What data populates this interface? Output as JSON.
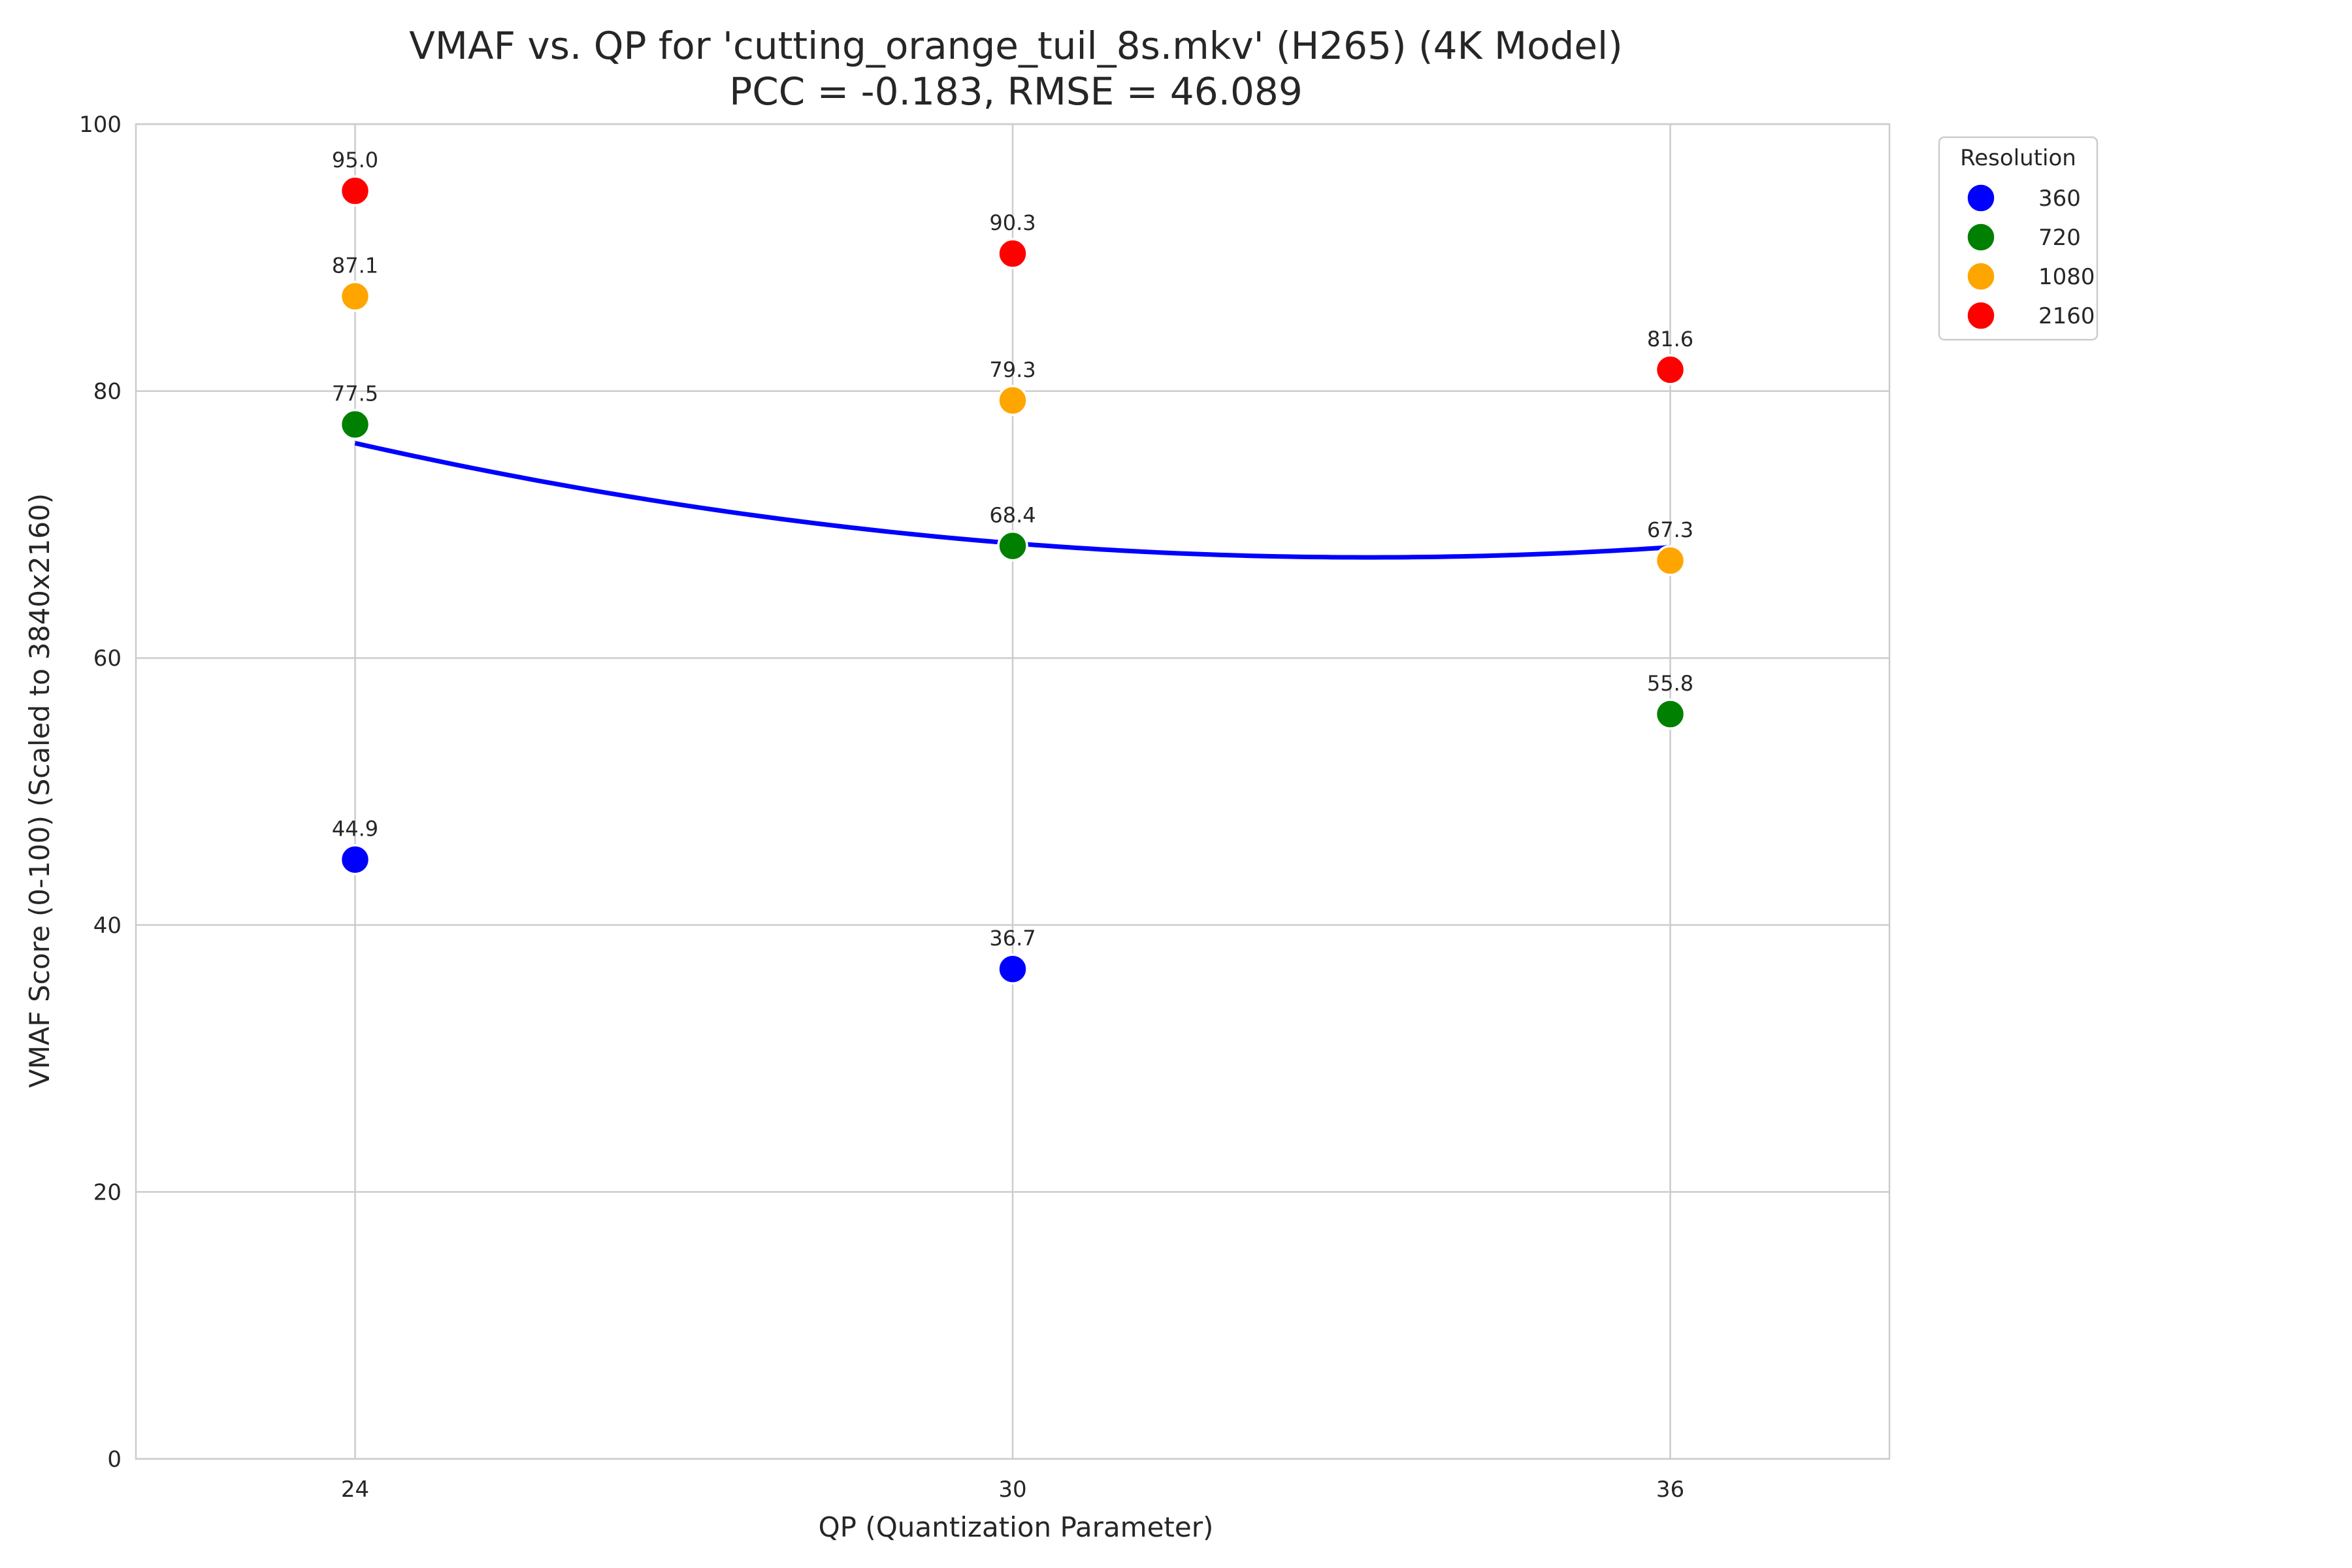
{
  "chart_data": {
    "type": "scatter",
    "title": "VMAF vs. QP for 'cutting_orange_tuil_8s.mkv' (H265) (4K Model)",
    "subtitle": "PCC = -0.183, RMSE = 46.089",
    "xlabel": "QP (Quantization Parameter)",
    "ylabel": "VMAF Score (0-100) (Scaled to 3840x2160)",
    "x_ticks": [
      24,
      30,
      36
    ],
    "y_ticks": [
      0,
      20,
      40,
      60,
      80,
      100
    ],
    "xlim": [
      22,
      38
    ],
    "ylim": [
      0,
      100
    ],
    "grid": true,
    "legend": {
      "title": "Resolution",
      "placement": "outside-top-right"
    },
    "series": [
      {
        "name": "360",
        "color": "#0000ff",
        "points": [
          {
            "x": 24,
            "y": 44.9,
            "label": "44.9"
          },
          {
            "x": 30,
            "y": 36.7,
            "label": "36.7"
          }
        ]
      },
      {
        "name": "720",
        "color": "#008000",
        "points": [
          {
            "x": 24,
            "y": 77.5,
            "label": "77.5"
          },
          {
            "x": 30,
            "y": 68.4,
            "label": "68.4"
          },
          {
            "x": 36,
            "y": 55.8,
            "label": "55.8"
          }
        ]
      },
      {
        "name": "1080",
        "color": "#ffa500",
        "points": [
          {
            "x": 24,
            "y": 87.1,
            "label": "87.1"
          },
          {
            "x": 30,
            "y": 79.3,
            "label": "79.3"
          },
          {
            "x": 36,
            "y": 67.3,
            "label": "67.3"
          }
        ]
      },
      {
        "name": "2160",
        "color": "#ff0000",
        "points": [
          {
            "x": 24,
            "y": 95.0,
            "label": "95.0"
          },
          {
            "x": 30,
            "y": 90.3,
            "label": "90.3"
          },
          {
            "x": 36,
            "y": 81.6,
            "label": "81.6"
          }
        ]
      }
    ],
    "fit_line": {
      "color": "#0000ff",
      "points": [
        {
          "x": 24,
          "y": 76.1
        },
        {
          "x": 30,
          "y": 68.6
        },
        {
          "x": 36,
          "y": 68.3
        }
      ]
    }
  }
}
